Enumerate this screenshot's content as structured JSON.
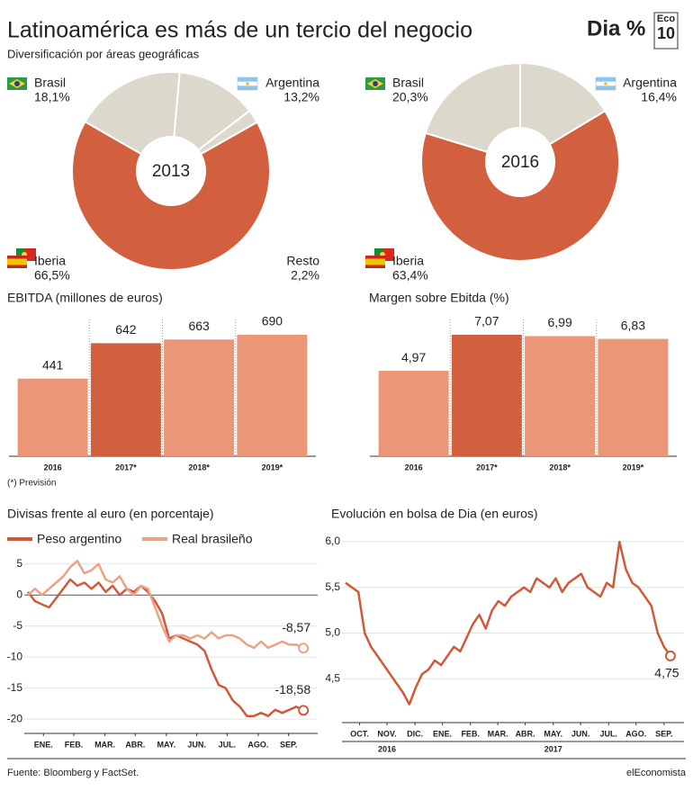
{
  "header": {
    "title": "Latinoamérica es más de un tercio del negocio",
    "subtitle": "Diversificación por áreas geográficas",
    "logo": "Dia %",
    "eco": "Eco",
    "ten": "10"
  },
  "chart_data": [
    {
      "type": "donut",
      "center_label": "2013",
      "categories": [
        "Argentina",
        "Resto",
        "Iberia",
        "Brasil"
      ],
      "values": [
        13.2,
        2.2,
        66.5,
        18.1
      ],
      "value_labels": [
        "13,2%",
        "2,2%",
        "66,5%",
        "18,1%"
      ],
      "colors": [
        "#dcd9cc",
        "#dcd9cc",
        "#d2603f",
        "#dcd9cc"
      ]
    },
    {
      "type": "donut",
      "center_label": "2016",
      "categories": [
        "Argentina",
        "Iberia",
        "Brasil"
      ],
      "values": [
        16.4,
        63.4,
        20.3
      ],
      "value_labels": [
        "16,4%",
        "63,4%",
        "20,3%"
      ],
      "colors": [
        "#dcd9cc",
        "#d2603f",
        "#dcd9cc"
      ]
    },
    {
      "type": "bar",
      "title": "EBITDA (millones de euros)",
      "categories": [
        "2016",
        "2017*",
        "2018*",
        "2019*"
      ],
      "values": [
        441,
        642,
        663,
        690
      ],
      "colors": [
        "#eb9676",
        "#d2603f",
        "#eb9676",
        "#eb9676"
      ],
      "note": "(*) Previsión"
    },
    {
      "type": "bar",
      "title": "Margen sobre Ebitda (%)",
      "categories": [
        "2016",
        "2017*",
        "2018*",
        "2019*"
      ],
      "values": [
        4.97,
        7.07,
        6.99,
        6.83
      ],
      "value_labels": [
        "4,97",
        "7,07",
        "6,99",
        "6,83"
      ],
      "colors": [
        "#eb9676",
        "#d2603f",
        "#eb9676",
        "#eb9676"
      ]
    },
    {
      "type": "line",
      "title": "Divisas frente al euro (en porcentaje)",
      "legend": true,
      "x": [
        0,
        1,
        2,
        3,
        4,
        5,
        6,
        7,
        8,
        9,
        10,
        11,
        12,
        13,
        14,
        15,
        16,
        17,
        18,
        19,
        20,
        21,
        22,
        23,
        24,
        25,
        26,
        27,
        28,
        29,
        30,
        31,
        32,
        33,
        34,
        35,
        36,
        37,
        38,
        39
      ],
      "xlim": [
        0,
        40
      ],
      "xticks": [
        {
          "value": 2.2,
          "label": "ENE."
        },
        {
          "value": 6.5,
          "label": "FEB."
        },
        {
          "value": 10.9,
          "label": "MAR."
        },
        {
          "value": 15.2,
          "label": "ABR."
        },
        {
          "value": 19.6,
          "label": "MAY."
        },
        {
          "value": 23.9,
          "label": "JUN."
        },
        {
          "value": 28.2,
          "label": "JUL."
        },
        {
          "value": 32.6,
          "label": "AGO."
        },
        {
          "value": 36.9,
          "label": "SEP."
        }
      ],
      "ylim": [
        -22.3,
        6.7
      ],
      "yticks": [
        5,
        0,
        -5,
        -10,
        -15,
        -20
      ],
      "series": [
        {
          "name": "Peso argentino",
          "color": "#cf5a3a",
          "values": [
            0.5,
            -1,
            -1.5,
            -2,
            -0.5,
            1,
            2.5,
            1.5,
            2,
            1,
            2,
            0.5,
            1.5,
            0,
            1,
            0.5,
            1.5,
            0.5,
            -1,
            -3,
            -7,
            -6.5,
            -7,
            -7.5,
            -8,
            -9,
            -12,
            -14.5,
            -15,
            -17,
            -18,
            -19.5,
            -19.5,
            -19,
            -19.5,
            -18.5,
            -19,
            -18.5,
            -18,
            -18.58
          ],
          "value_labels": [
            null,
            null,
            null,
            null,
            null,
            null,
            null,
            null,
            null,
            null,
            null,
            null,
            null,
            null,
            null,
            null,
            null,
            null,
            null,
            null,
            null,
            null,
            null,
            null,
            null,
            null,
            null,
            null,
            null,
            null,
            null,
            null,
            null,
            null,
            null,
            null,
            null,
            null,
            null,
            "-18,58"
          ]
        },
        {
          "name": "Real brasileño",
          "color": "#eda185",
          "values": [
            0,
            1,
            0,
            1,
            2,
            3,
            4.5,
            5.5,
            3.5,
            4,
            5,
            2.5,
            2,
            3,
            1,
            0,
            1.5,
            1,
            -2,
            -5,
            -7.5,
            -6.5,
            -6.5,
            -7,
            -6.5,
            -7,
            -6,
            -7,
            -6.5,
            -6.5,
            -7,
            -8,
            -8.5,
            -7.5,
            -8.5,
            -8,
            -7.5,
            -8,
            -8,
            -8.57
          ],
          "value_labels": [
            null,
            null,
            null,
            null,
            null,
            null,
            null,
            null,
            null,
            null,
            null,
            null,
            null,
            null,
            null,
            null,
            null,
            null,
            null,
            null,
            null,
            null,
            null,
            null,
            null,
            null,
            null,
            null,
            null,
            null,
            null,
            null,
            null,
            null,
            null,
            null,
            null,
            null,
            null,
            "-8,57"
          ]
        }
      ]
    },
    {
      "type": "line",
      "title": "Evolución en bolsa de Dia (en euros)",
      "x": [
        0,
        1,
        2,
        3,
        4,
        5,
        6,
        7,
        8,
        9,
        10,
        11,
        12,
        13,
        14,
        15,
        16,
        17,
        18,
        19,
        20,
        21,
        22,
        23,
        24,
        25,
        26,
        27,
        28,
        29,
        30,
        31,
        32,
        33,
        34,
        35,
        36,
        37,
        38,
        39,
        40,
        41,
        42,
        43,
        44,
        45,
        46,
        47,
        48,
        49,
        50,
        51
      ],
      "xlim": [
        0,
        52
      ],
      "xticks": [
        {
          "value": 2.2,
          "label": "OCT."
        },
        {
          "value": 6.5,
          "label": "NOV."
        },
        {
          "value": 10.9,
          "label": "DIC."
        },
        {
          "value": 15.2,
          "label": "ENE."
        },
        {
          "value": 19.6,
          "label": "FEB."
        },
        {
          "value": 23.9,
          "label": "MAR."
        },
        {
          "value": 28.2,
          "label": "ABR."
        },
        {
          "value": 32.6,
          "label": "MAY."
        },
        {
          "value": 36.9,
          "label": "JUN."
        },
        {
          "value": 41.3,
          "label": "JUL."
        },
        {
          "value": 45.6,
          "label": "AGO."
        },
        {
          "value": 50.0,
          "label": "SEP."
        }
      ],
      "year_ticks": [
        {
          "value": 6.5,
          "label": "2016"
        },
        {
          "value": 32.6,
          "label": "2017"
        }
      ],
      "ylim": [
        4.02,
        6.04
      ],
      "yticks": [
        {
          "value": 6,
          "label": "6,0"
        },
        {
          "value": 5.5,
          "label": "5,5"
        },
        {
          "value": 5,
          "label": "5,0"
        },
        {
          "value": 4.5,
          "label": "4,5"
        }
      ],
      "series": [
        {
          "color": "#cf5a3a",
          "values": [
            5.55,
            5.5,
            5.45,
            5.0,
            4.85,
            4.75,
            4.65,
            4.55,
            4.45,
            4.35,
            4.22,
            4.4,
            4.55,
            4.6,
            4.7,
            4.65,
            4.75,
            4.85,
            4.8,
            4.95,
            5.1,
            5.2,
            5.05,
            5.25,
            5.35,
            5.3,
            5.4,
            5.45,
            5.5,
            5.45,
            5.6,
            5.55,
            5.5,
            5.6,
            5.45,
            5.55,
            5.6,
            5.65,
            5.5,
            5.45,
            5.4,
            5.55,
            5.5,
            6.0,
            5.7,
            5.55,
            5.5,
            5.4,
            5.3,
            5.0,
            4.85,
            4.75
          ],
          "value_labels": [
            null,
            null,
            null,
            null,
            null,
            null,
            null,
            null,
            null,
            null,
            null,
            null,
            null,
            null,
            null,
            null,
            null,
            null,
            null,
            null,
            null,
            null,
            null,
            null,
            null,
            null,
            null,
            null,
            null,
            null,
            null,
            null,
            null,
            null,
            null,
            null,
            null,
            null,
            null,
            null,
            null,
            null,
            null,
            null,
            null,
            null,
            null,
            null,
            null,
            null,
            null,
            "4,75"
          ]
        }
      ]
    }
  ],
  "footer": {
    "source": "Fuente: Bloomberg y FactSet.",
    "brand": "elEconomista"
  }
}
